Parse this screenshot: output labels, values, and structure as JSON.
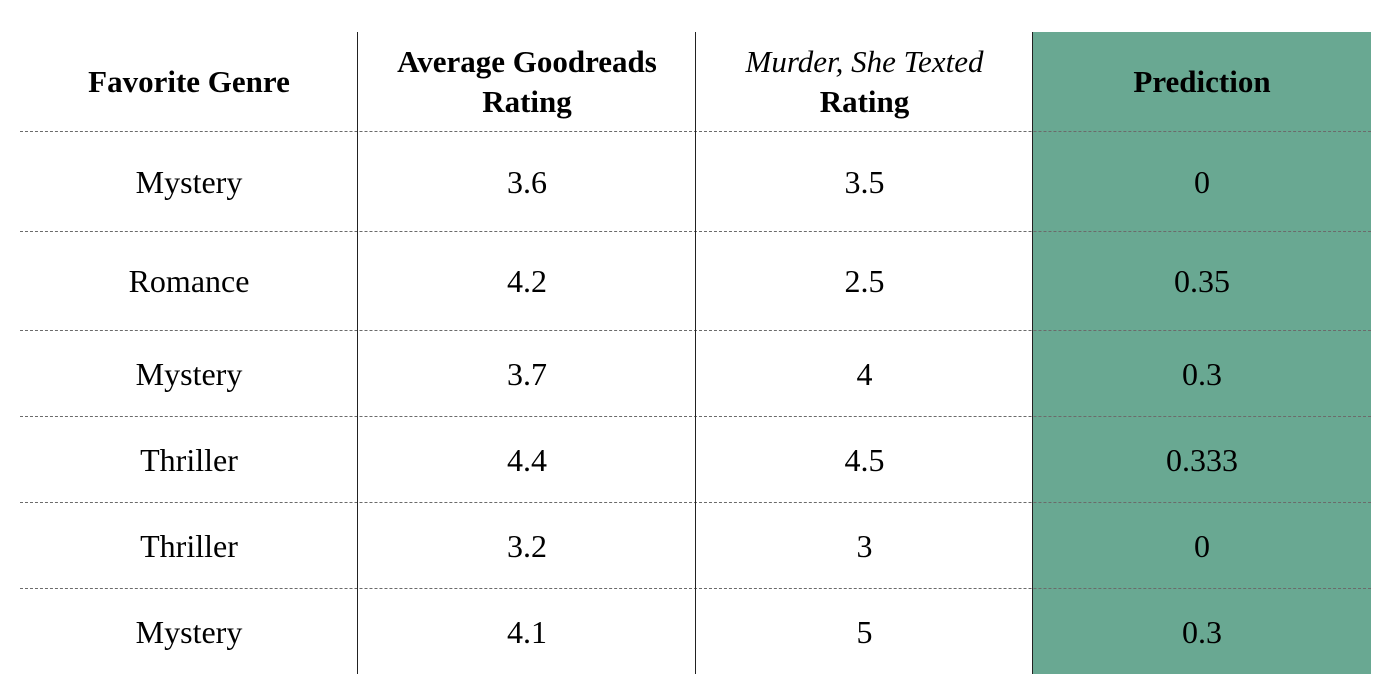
{
  "table": {
    "columns": [
      {
        "line1": "Favorite Genre",
        "line2": ""
      },
      {
        "line1": "Average Goodreads",
        "line2": "Rating"
      },
      {
        "line1_italic": "Murder, She Texted",
        "line2": "Rating"
      },
      {
        "line1": "Prediction",
        "line2": ""
      }
    ],
    "rows": [
      [
        "Mystery",
        "3.6",
        "3.5",
        "0"
      ],
      [
        "Romance",
        "4.2",
        "2.5",
        "0.35"
      ],
      [
        "Mystery",
        "3.7",
        "4",
        "0.3"
      ],
      [
        "Thriller",
        "4.4",
        "4.5",
        "0.333"
      ],
      [
        "Thriller",
        "3.2",
        "3",
        "0"
      ],
      [
        "Mystery",
        "4.1",
        "5",
        "0.3"
      ]
    ],
    "highlight_color": "#69a892"
  }
}
